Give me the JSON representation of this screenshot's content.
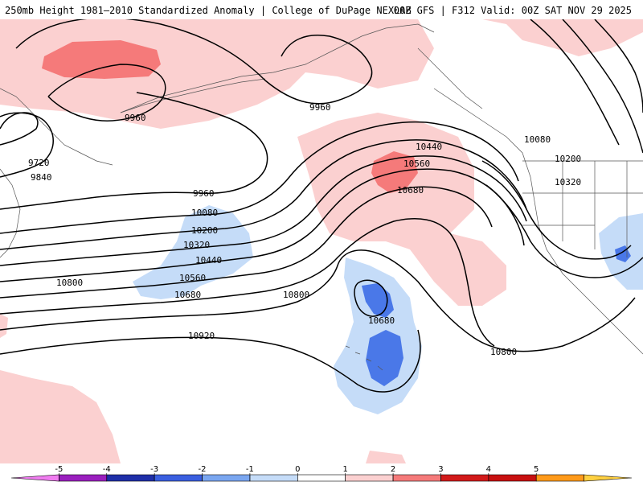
{
  "header": {
    "title_left": "250mb Height 1981–2010 Standardized Anomaly | College of DuPage NEXLAB",
    "title_right": "00Z GFS | F312 Valid: 00Z SAT NOV 29 2025"
  },
  "contour_labels": [
    {
      "text": "9960"
    },
    {
      "text": "9960"
    },
    {
      "text": "9720"
    },
    {
      "text": "9840"
    },
    {
      "text": "9960"
    },
    {
      "text": "10080"
    },
    {
      "text": "10200"
    },
    {
      "text": "10320"
    },
    {
      "text": "10440"
    },
    {
      "text": "10560"
    },
    {
      "text": "10680"
    },
    {
      "text": "10800"
    },
    {
      "text": "10800"
    },
    {
      "text": "10920"
    },
    {
      "text": "10440"
    },
    {
      "text": "10560"
    },
    {
      "text": "10680"
    },
    {
      "text": "10680"
    },
    {
      "text": "10080"
    },
    {
      "text": "10200"
    },
    {
      "text": "10320"
    },
    {
      "text": "10800"
    }
  ],
  "colorbar": {
    "ticks": [
      "-5",
      "-4",
      "-3",
      "-2",
      "-1",
      "0",
      "1",
      "2",
      "3",
      "4",
      "5"
    ],
    "colors": [
      "#f07cf0",
      "#9a1fbe",
      "#1f2fa8",
      "#3a5fe0",
      "#7aa6f0",
      "#c5dcf8",
      "#ffffff",
      "#fbd0d0",
      "#f57a7a",
      "#d21a1a",
      "#c81010",
      "#ff9a1a",
      "#ffd040"
    ]
  }
}
